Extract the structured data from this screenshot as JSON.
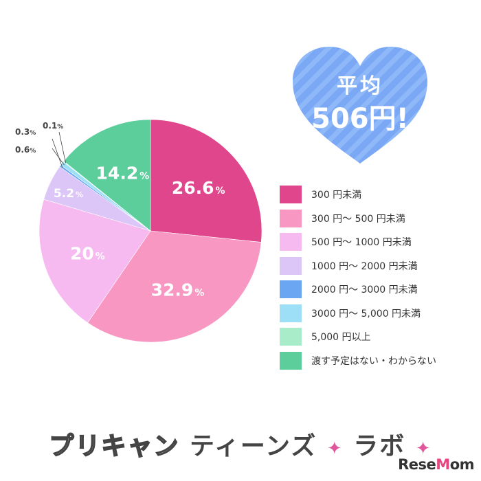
{
  "chart_data": {
    "type": "pie",
    "start_angle_deg": 0,
    "direction": "clockwise",
    "slices": [
      {
        "label": "300 円未満",
        "value": 26.6,
        "display": "26.6",
        "unit": "%",
        "color": "#e0468b"
      },
      {
        "label": "300 円～ 500 円未満",
        "value": 32.9,
        "display": "32.9",
        "unit": "%",
        "color": "#f797c2"
      },
      {
        "label": "500 円～ 1000 円未満",
        "value": 20,
        "display": "20",
        "unit": "%",
        "color": "#f6baf0"
      },
      {
        "label": "1000 円～ 2000 円未満",
        "value": 5.2,
        "display": "5.2",
        "unit": "%",
        "color": "#dcc5f7"
      },
      {
        "label": "2000 円～ 3000 円未満",
        "value": 0.3,
        "display": "0.3",
        "unit": "%",
        "color": "#6aa6f2"
      },
      {
        "label": "3000 円～ 5,000 円未満",
        "value": 0.6,
        "display": "0.6",
        "unit": "%",
        "color": "#9edff8"
      },
      {
        "label": "5,000 円以上",
        "value": 0.1,
        "display": "0.1",
        "unit": "%",
        "color": "#a8ecca"
      },
      {
        "label": "渡す予定はない・わからない",
        "value": 14.2,
        "display": "14.2",
        "unit": "%",
        "color": "#5bce9c"
      }
    ]
  },
  "badge": {
    "title": "平均",
    "value": "506円!",
    "color": "#7aa8f5"
  },
  "footer": {
    "brand_part1": "プリキャン",
    "brand_part2": "ティーンズ",
    "brand_part3": "ラボ",
    "spark": "✦",
    "logo_part1": "Rese",
    "logo_part2": "M",
    "logo_part3": "om"
  }
}
